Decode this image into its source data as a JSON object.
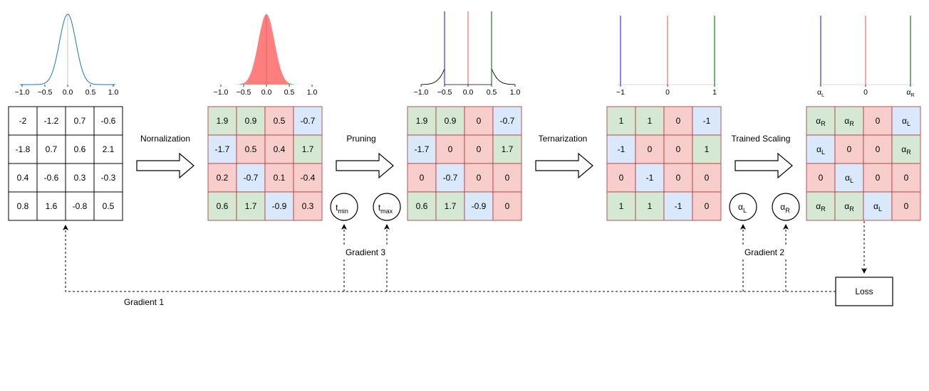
{
  "steps": [
    {
      "label": "Nornalization"
    },
    {
      "label": "Pruning"
    },
    {
      "label": "Ternarization"
    },
    {
      "label": "Trained Scaling"
    }
  ],
  "matrices": [
    {
      "values": [
        [
          "-2",
          "-1.2",
          "0.7",
          "-0.6"
        ],
        [
          "-1.8",
          "0.7",
          "0.6",
          "2.1"
        ],
        [
          "0.4",
          "-0.6",
          "0.3",
          "-0.3"
        ],
        [
          "0.8",
          "1.6",
          "-0.8",
          "0.5"
        ]
      ],
      "colors": [
        [
          "w",
          "w",
          "w",
          "w"
        ],
        [
          "w",
          "w",
          "w",
          "w"
        ],
        [
          "w",
          "w",
          "w",
          "w"
        ],
        [
          "w",
          "w",
          "w",
          "w"
        ]
      ]
    },
    {
      "values": [
        [
          "1.9",
          "0.9",
          "0.5",
          "-0.7"
        ],
        [
          "-1.7",
          "0.5",
          "0.4",
          "1.7"
        ],
        [
          "0.2",
          "-0.7",
          "0.1",
          "-0.4"
        ],
        [
          "0.6",
          "1.7",
          "-0.9",
          "0.3"
        ]
      ],
      "colors": [
        [
          "g",
          "g",
          "r",
          "b"
        ],
        [
          "b",
          "r",
          "r",
          "g"
        ],
        [
          "r",
          "b",
          "r",
          "r"
        ],
        [
          "g",
          "g",
          "b",
          "r"
        ]
      ]
    },
    {
      "values": [
        [
          "1.9",
          "0.9",
          "0",
          "-0.7"
        ],
        [
          "-1.7",
          "0",
          "0",
          "1.7"
        ],
        [
          "0",
          "-0.7",
          "0",
          "0"
        ],
        [
          "0.6",
          "1.7",
          "-0.9",
          "0"
        ]
      ],
      "colors": [
        [
          "g",
          "g",
          "r",
          "b"
        ],
        [
          "b",
          "r",
          "r",
          "g"
        ],
        [
          "r",
          "b",
          "r",
          "r"
        ],
        [
          "g",
          "g",
          "b",
          "r"
        ]
      ]
    },
    {
      "values": [
        [
          "1",
          "1",
          "0",
          "-1"
        ],
        [
          "-1",
          "0",
          "0",
          "1"
        ],
        [
          "0",
          "-1",
          "0",
          "0"
        ],
        [
          "1",
          "1",
          "-1",
          "0"
        ]
      ],
      "colors": [
        [
          "g",
          "g",
          "r",
          "b"
        ],
        [
          "b",
          "r",
          "r",
          "g"
        ],
        [
          "r",
          "b",
          "r",
          "r"
        ],
        [
          "g",
          "g",
          "b",
          "r"
        ]
      ]
    },
    {
      "values": [
        [
          "αR",
          "αR",
          "0",
          "αL"
        ],
        [
          "αL",
          "0",
          "0",
          "αR"
        ],
        [
          "0",
          "αL",
          "0",
          "0"
        ],
        [
          "αR",
          "αR",
          "αL",
          "0"
        ]
      ],
      "colors": [
        [
          "g",
          "g",
          "r",
          "b"
        ],
        [
          "b",
          "r",
          "r",
          "g"
        ],
        [
          "r",
          "b",
          "r",
          "r"
        ],
        [
          "g",
          "g",
          "b",
          "r"
        ]
      ]
    }
  ],
  "colors": {
    "g": "#d5e8d4",
    "r": "#f8cecc",
    "b": "#dae8fc",
    "w": "#ffffff",
    "green_line": "#1a7f1a",
    "red_line": "#ff6666",
    "blue_line": "#3333ff",
    "gauss_blue": "#1f77b4",
    "fill_red": "#ff7f7f",
    "fill_green": "#5db35d",
    "fill_blue": "#7f7fff"
  },
  "plots": [
    {
      "ticks": [
        "−1.0",
        "−0.5",
        "0.0",
        "0.5",
        "1.0"
      ]
    },
    {
      "ticks": [
        "−1.0",
        "−0.5",
        "0.0",
        "0.5",
        "1.0"
      ]
    },
    {
      "ticks": [
        "−1.0",
        "−0.5",
        "0.0",
        "0.5",
        "1.0"
      ]
    },
    {
      "ticks": [
        "−1",
        "0",
        "1"
      ]
    },
    {
      "ticks": [
        "αL",
        "0",
        "αR"
      ]
    }
  ],
  "params": {
    "t_min": {
      "base": "t",
      "sub": "min"
    },
    "t_max": {
      "base": "t",
      "sub": "max"
    },
    "alpha_l": {
      "base": "α",
      "sub": "L"
    },
    "alpha_r": {
      "base": "α",
      "sub": "R"
    }
  },
  "gradients": {
    "g1": "Gradient 1",
    "g2": "Gradient 2",
    "g3": "Gradient 3"
  },
  "loss": "Loss"
}
